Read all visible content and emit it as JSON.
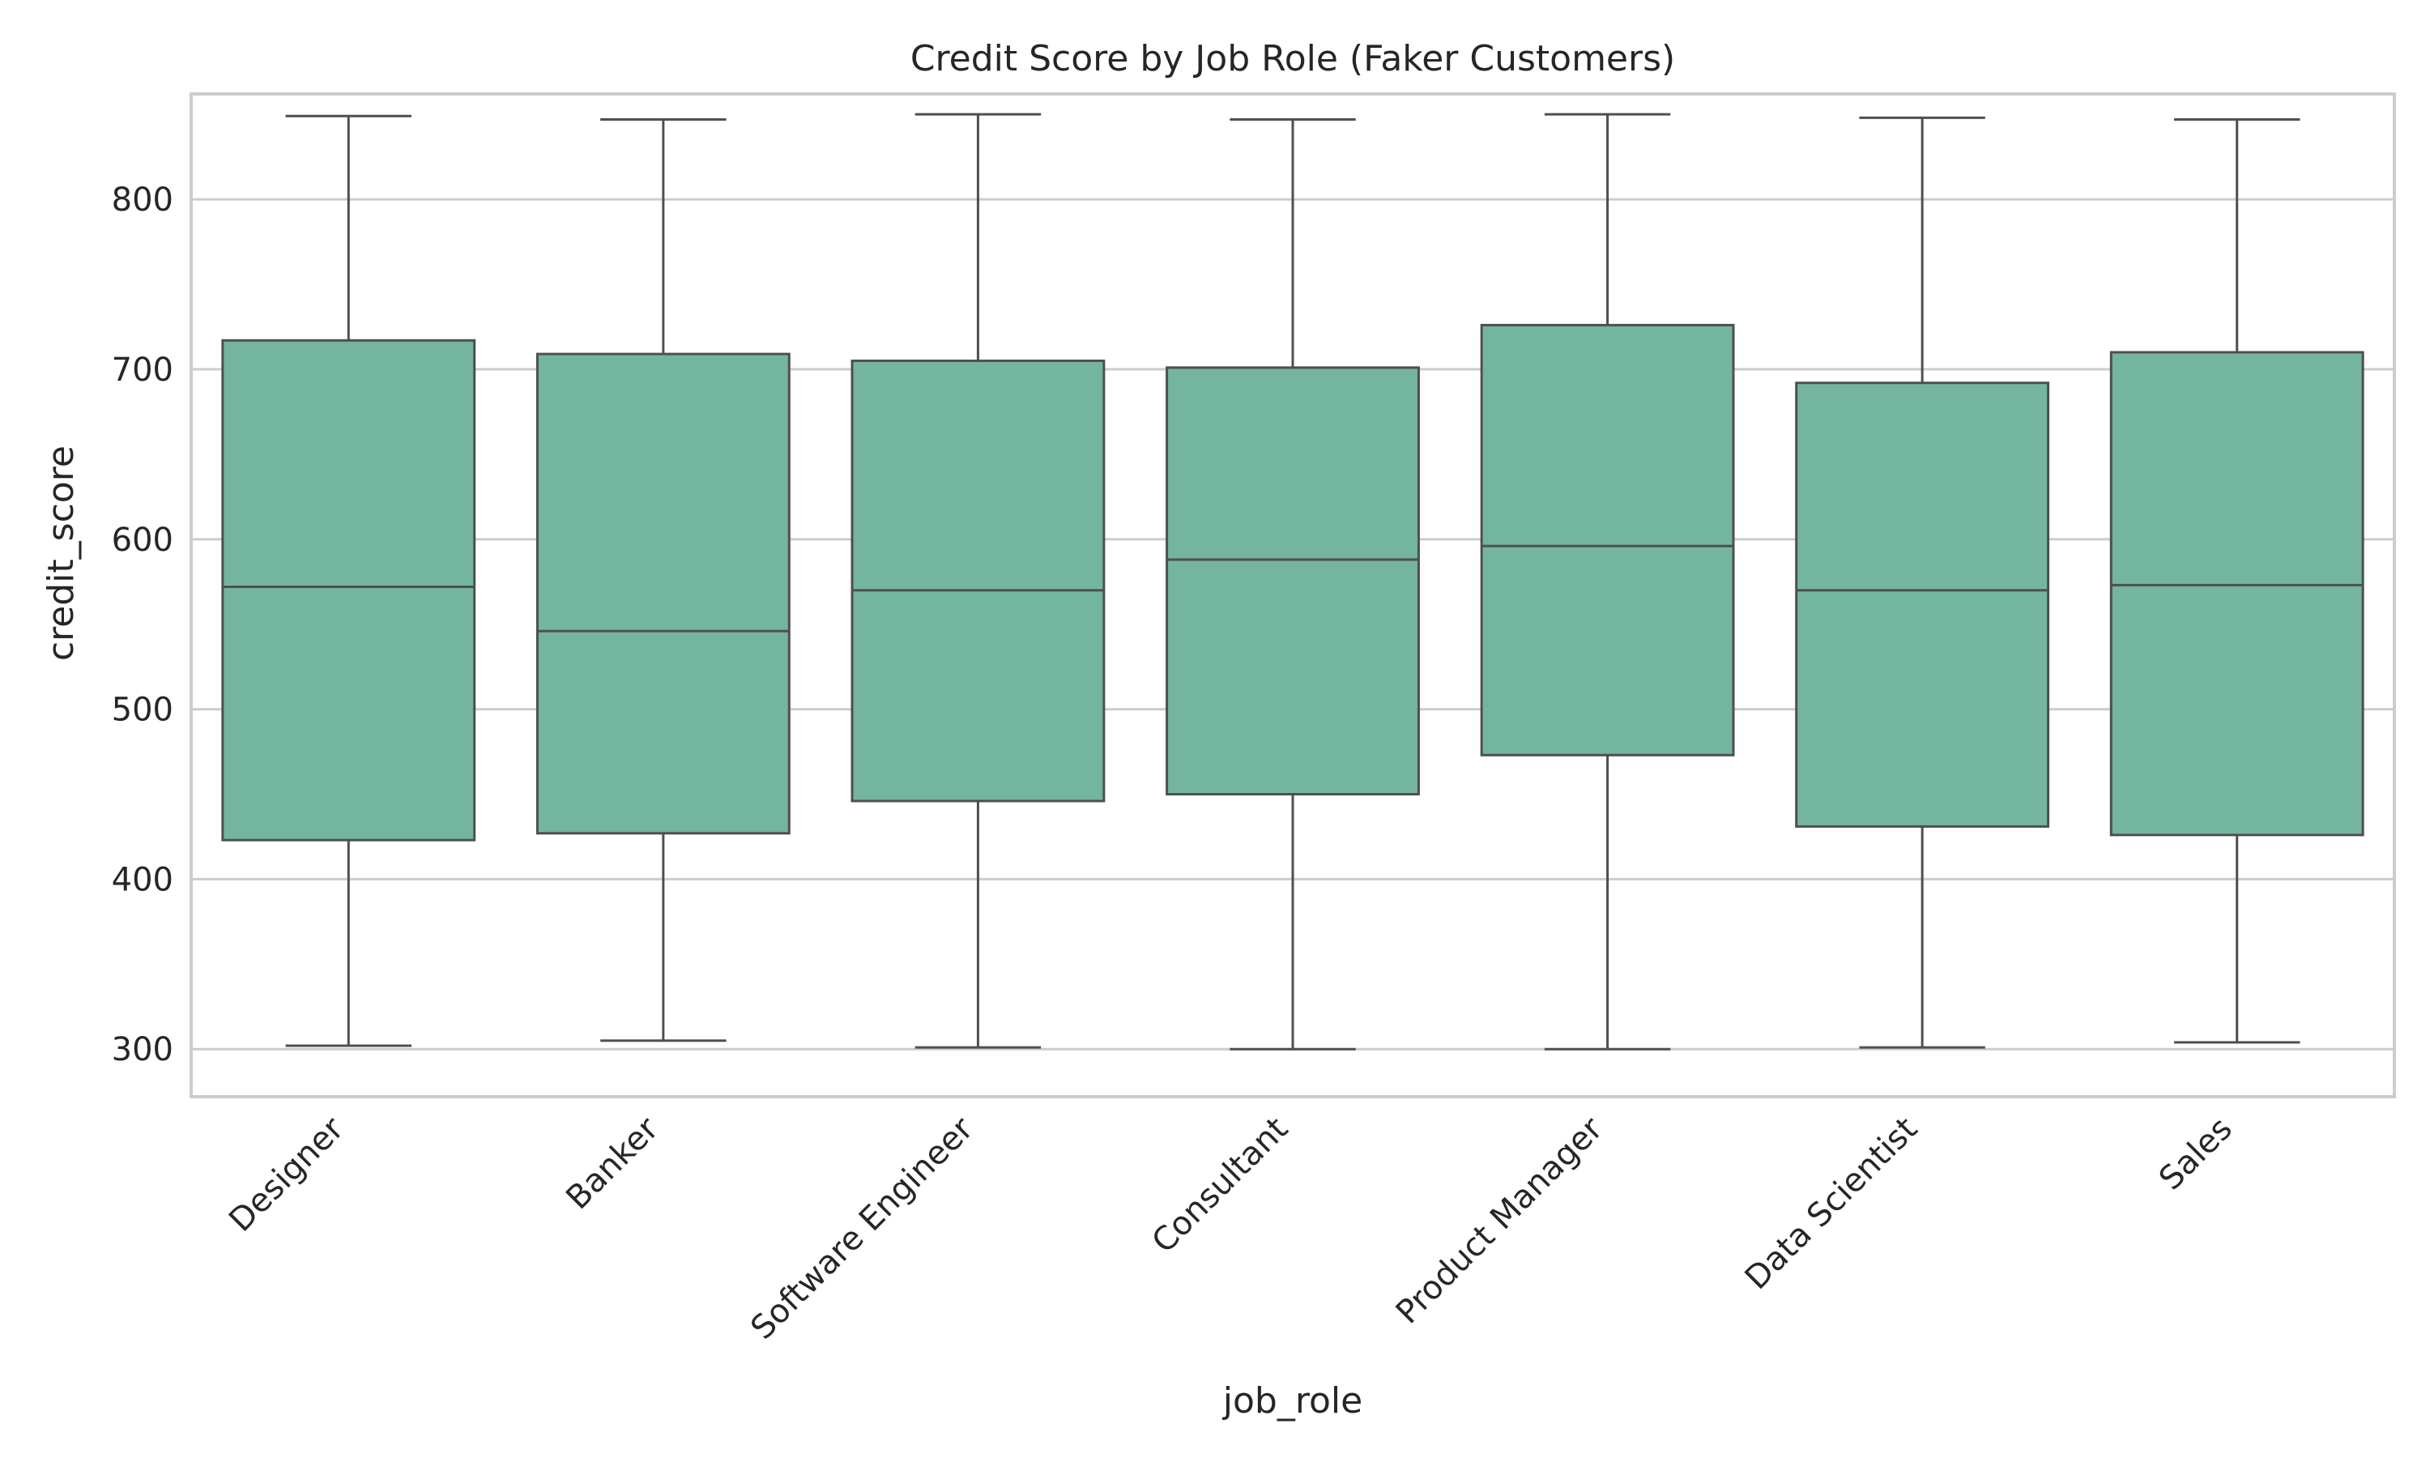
{
  "chart_data": {
    "type": "box",
    "title": "Credit Score by Job Role (Faker Customers)",
    "xlabel": "job_role",
    "ylabel": "credit_score",
    "ylim": [
      272,
      862
    ],
    "yticks": [
      300,
      400,
      500,
      600,
      700,
      800
    ],
    "grid": "horizontal",
    "categories": [
      "Designer",
      "Banker",
      "Software Engineer",
      "Consultant",
      "Product Manager",
      "Data Scientist",
      "Sales"
    ],
    "boxes": [
      {
        "category": "Designer",
        "min": 302,
        "q1": 423,
        "median": 572,
        "q3": 717,
        "max": 849
      },
      {
        "category": "Banker",
        "min": 305,
        "q1": 427,
        "median": 546,
        "q3": 709,
        "max": 847
      },
      {
        "category": "Software Engineer",
        "min": 301,
        "q1": 446,
        "median": 570,
        "q3": 705,
        "max": 850
      },
      {
        "category": "Consultant",
        "min": 300,
        "q1": 450,
        "median": 588,
        "q3": 701,
        "max": 847
      },
      {
        "category": "Product Manager",
        "min": 300,
        "q1": 473,
        "median": 596,
        "q3": 726,
        "max": 850
      },
      {
        "category": "Data Scientist",
        "min": 301,
        "q1": 431,
        "median": 570,
        "q3": 692,
        "max": 848
      },
      {
        "category": "Sales",
        "min": 304,
        "q1": 426,
        "median": 573,
        "q3": 710,
        "max": 847
      }
    ],
    "colors": {
      "box_fill": "#74b5a0",
      "line": "#4f4f4f",
      "grid": "#cccccc",
      "frame": "#cccccc"
    }
  }
}
